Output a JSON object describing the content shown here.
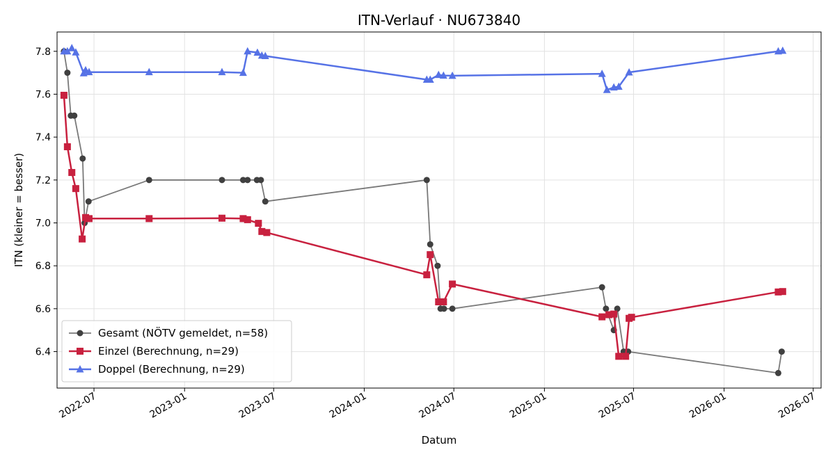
{
  "chart_data": {
    "type": "line",
    "title": "ITN-Verlauf · NU673840",
    "xlabel": "Datum",
    "ylabel": "ITN  (kleiner = besser)",
    "xlim": [
      "2022-04-17",
      "2026-07-17"
    ],
    "ylim": [
      6.23,
      7.89
    ],
    "x_ticks": [
      "2022-07",
      "2023-01",
      "2023-07",
      "2024-01",
      "2024-07",
      "2025-01",
      "2025-07",
      "2026-01",
      "2026-07"
    ],
    "y_ticks": [
      6.4,
      6.6,
      6.8,
      7.0,
      7.2,
      7.4,
      7.6,
      7.8
    ],
    "grid": true,
    "legend_position": "lower-left",
    "series": [
      {
        "name": "Gesamt (NÖTV gemeldet, n=58)",
        "color": "#404040",
        "marker": "circle",
        "points": [
          [
            "2022-05-01",
            7.8
          ],
          [
            "2022-05-08",
            7.7
          ],
          [
            "2022-05-15",
            7.5
          ],
          [
            "2022-05-22",
            7.5
          ],
          [
            "2022-06-08",
            7.3
          ],
          [
            "2022-06-12",
            7.0
          ],
          [
            "2022-06-20",
            7.1
          ],
          [
            "2022-10-21",
            7.2
          ],
          [
            "2023-03-18",
            7.2
          ],
          [
            "2023-04-30",
            7.2
          ],
          [
            "2023-05-09",
            7.2
          ],
          [
            "2023-05-28",
            7.2
          ],
          [
            "2023-06-05",
            7.2
          ],
          [
            "2023-06-14",
            7.1
          ],
          [
            "2024-05-07",
            7.2
          ],
          [
            "2024-05-14",
            6.9
          ],
          [
            "2024-05-29",
            6.8
          ],
          [
            "2024-06-04",
            6.6
          ],
          [
            "2024-06-11",
            6.6
          ],
          [
            "2024-06-28",
            6.6
          ],
          [
            "2025-04-28",
            6.7
          ],
          [
            "2025-05-06",
            6.6
          ],
          [
            "2025-05-22",
            6.5
          ],
          [
            "2025-05-29",
            6.6
          ],
          [
            "2025-06-11",
            6.4
          ],
          [
            "2025-06-20",
            6.4
          ],
          [
            "2026-04-21",
            6.3
          ],
          [
            "2026-04-28",
            6.4
          ]
        ]
      },
      {
        "name": "Einzel (Berechnung, n=29)",
        "color": "#c8213f",
        "marker": "square",
        "points": [
          [
            "2022-05-01",
            7.595
          ],
          [
            "2022-05-08",
            7.355
          ],
          [
            "2022-05-17",
            7.235
          ],
          [
            "2022-05-25",
            7.16
          ],
          [
            "2022-06-07",
            6.925
          ],
          [
            "2022-06-14",
            7.025
          ],
          [
            "2022-06-21",
            7.02
          ],
          [
            "2022-10-21",
            7.02
          ],
          [
            "2023-03-18",
            7.022
          ],
          [
            "2023-04-30",
            7.02
          ],
          [
            "2023-05-09",
            7.015
          ],
          [
            "2023-05-31",
            6.998
          ],
          [
            "2023-06-07",
            6.96
          ],
          [
            "2023-06-17",
            6.955
          ],
          [
            "2024-05-07",
            6.758
          ],
          [
            "2024-05-14",
            6.852
          ],
          [
            "2024-05-31",
            6.632
          ],
          [
            "2024-06-10",
            6.632
          ],
          [
            "2024-06-28",
            6.715
          ],
          [
            "2025-04-28",
            6.562
          ],
          [
            "2025-05-12",
            6.572
          ],
          [
            "2025-05-22",
            6.575
          ],
          [
            "2025-06-01",
            6.378
          ],
          [
            "2025-06-15",
            6.378
          ],
          [
            "2025-06-22",
            6.555
          ],
          [
            "2025-06-27",
            6.56
          ],
          [
            "2026-04-21",
            6.678
          ],
          [
            "2026-04-30",
            6.68
          ]
        ]
      },
      {
        "name": "Doppel (Berechnung, n=29)",
        "color": "#5672e6",
        "marker": "triangle",
        "points": [
          [
            "2022-05-01",
            7.8
          ],
          [
            "2022-05-08",
            7.8
          ],
          [
            "2022-05-17",
            7.815
          ],
          [
            "2022-05-25",
            7.795
          ],
          [
            "2022-06-10",
            7.698
          ],
          [
            "2022-06-14",
            7.712
          ],
          [
            "2022-06-21",
            7.703
          ],
          [
            "2022-10-21",
            7.703
          ],
          [
            "2023-03-18",
            7.703
          ],
          [
            "2023-04-30",
            7.7
          ],
          [
            "2023-05-09",
            7.8
          ],
          [
            "2023-05-29",
            7.794
          ],
          [
            "2023-06-07",
            7.78
          ],
          [
            "2023-06-14",
            7.778
          ],
          [
            "2024-05-07",
            7.668
          ],
          [
            "2024-05-14",
            7.668
          ],
          [
            "2024-05-31",
            7.69
          ],
          [
            "2024-06-10",
            7.687
          ],
          [
            "2024-06-28",
            7.686
          ],
          [
            "2025-04-28",
            7.695
          ],
          [
            "2025-05-08",
            7.62
          ],
          [
            "2025-05-22",
            7.632
          ],
          [
            "2025-06-01",
            7.635
          ],
          [
            "2025-06-22",
            7.702
          ],
          [
            "2026-04-21",
            7.8
          ],
          [
            "2026-04-30",
            7.803
          ]
        ]
      }
    ]
  }
}
